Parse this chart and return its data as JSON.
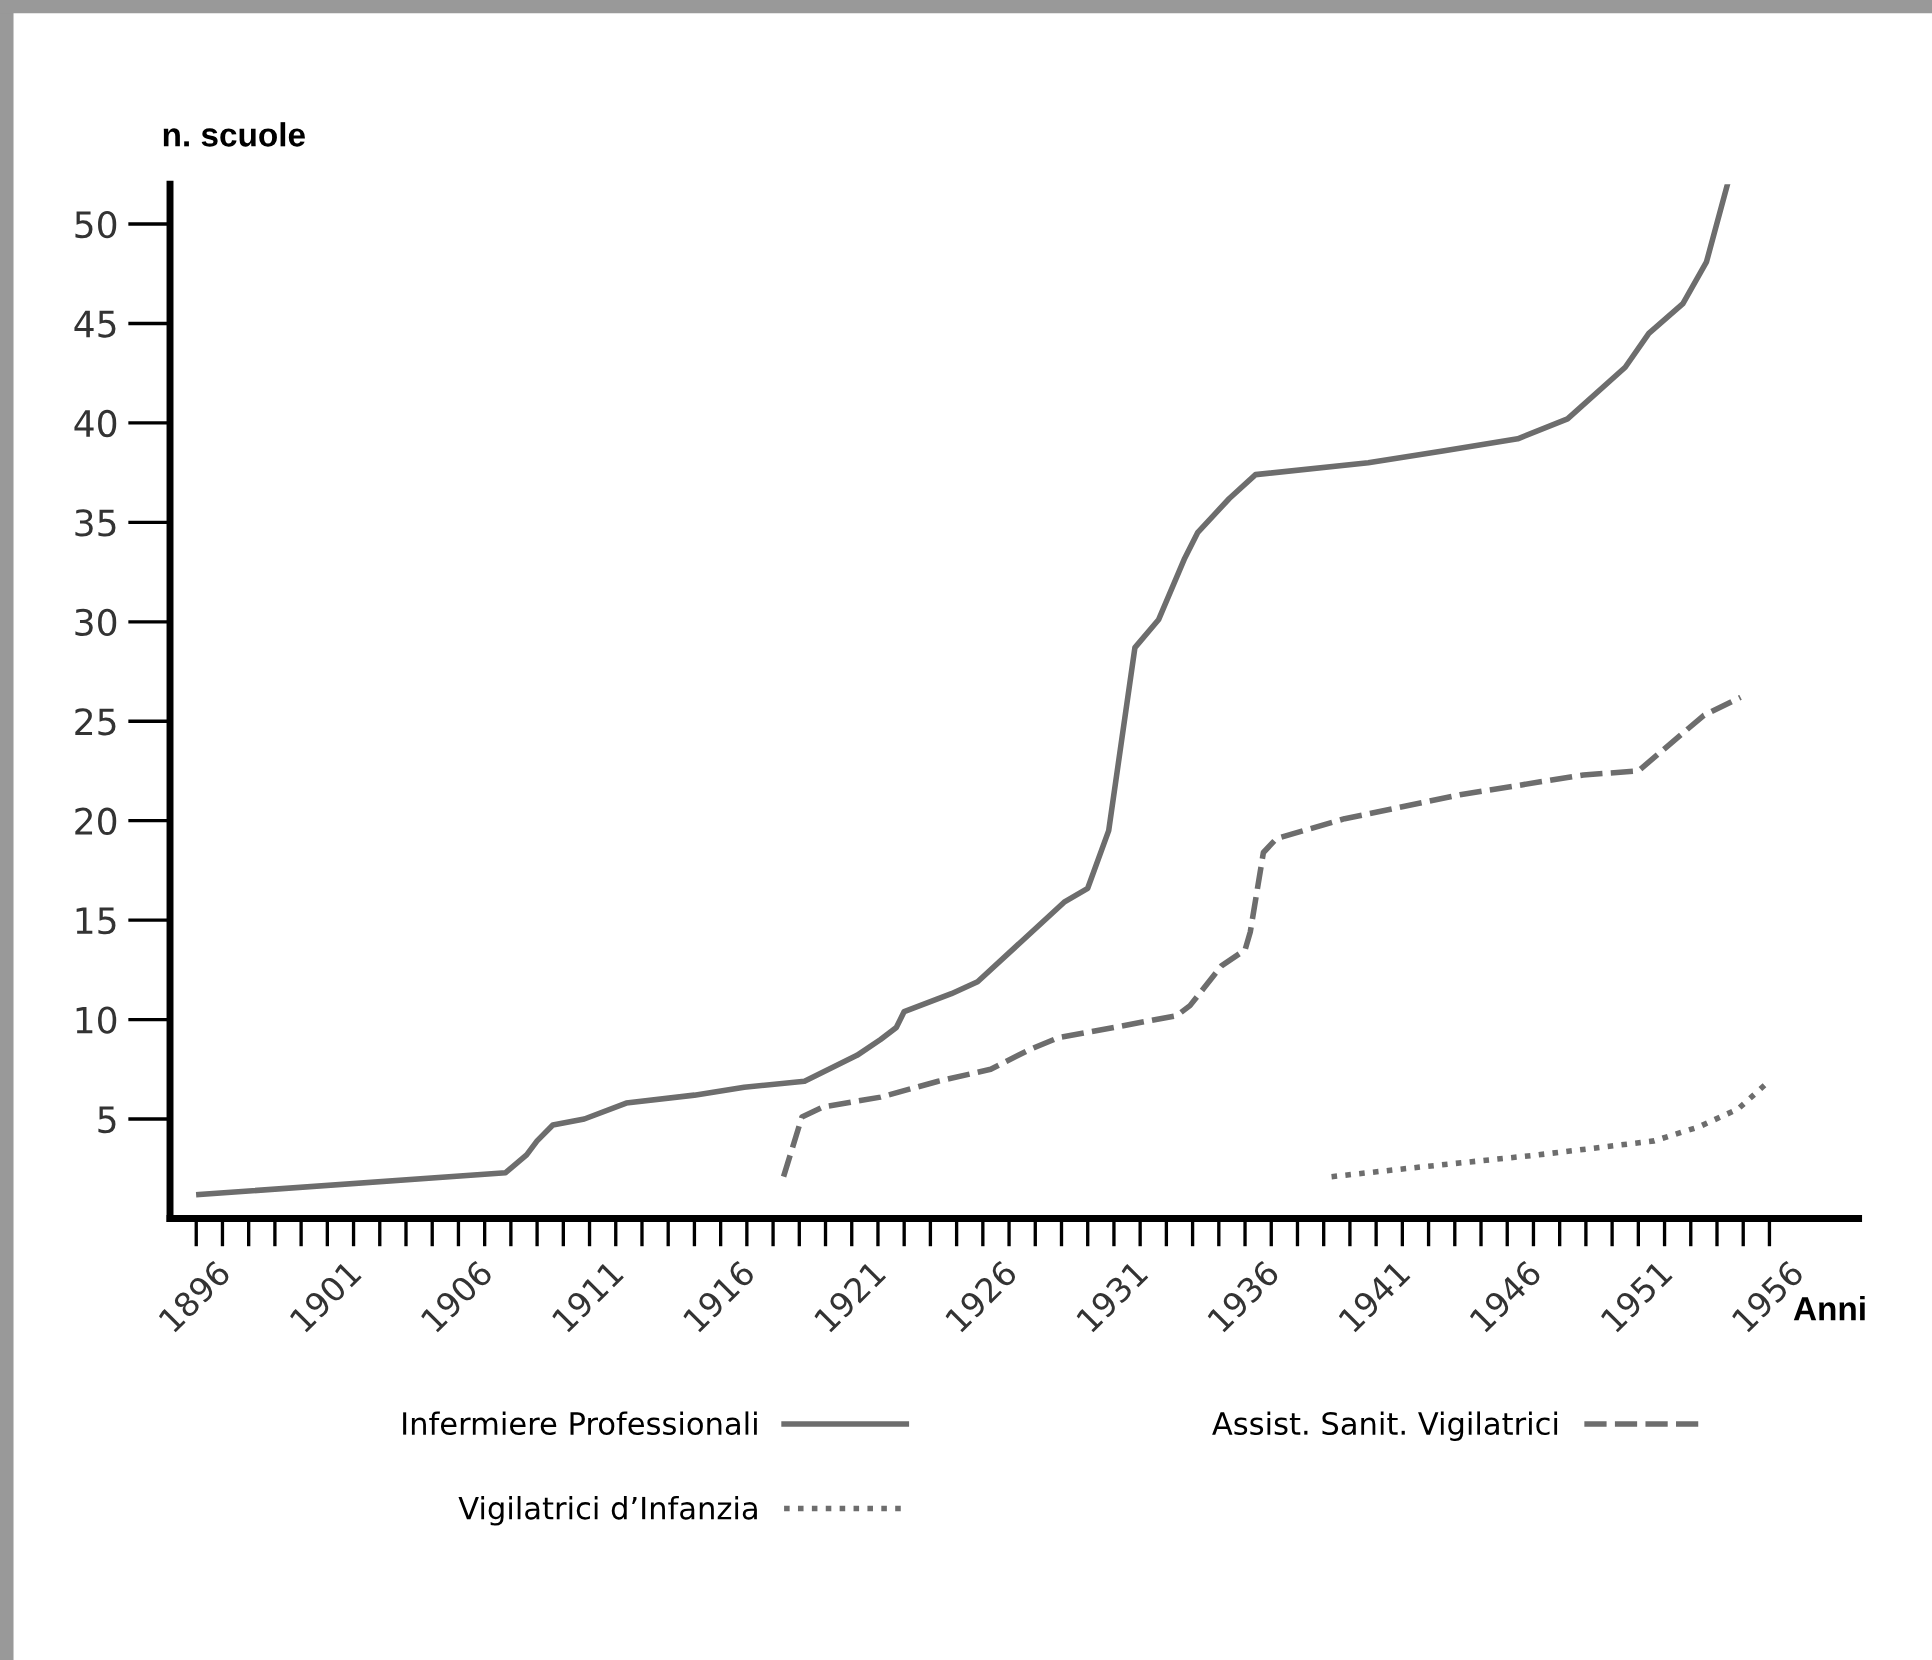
{
  "chart_data": {
    "type": "line",
    "xlabel": "Anni",
    "ylabel": "n. scuole",
    "xlim": [
      1895,
      1959.4
    ],
    "ylim": [
      0,
      52
    ],
    "yticks": [
      5,
      10,
      15,
      20,
      25,
      30,
      35,
      40,
      45,
      50
    ],
    "xticks": [
      1896,
      {
        "value": 1897,
        "label": null
      },
      {
        "value": 1898,
        "label": null
      },
      {
        "value": 1899,
        "label": null
      },
      {
        "value": 1900,
        "label": null
      },
      1901,
      {
        "value": 1902,
        "label": null
      },
      {
        "value": 1903,
        "label": null
      },
      {
        "value": 1904,
        "label": null
      },
      {
        "value": 1905,
        "label": null
      },
      1906,
      {
        "value": 1907,
        "label": null
      },
      {
        "value": 1908,
        "label": null
      },
      {
        "value": 1909,
        "label": null
      },
      {
        "value": 1910,
        "label": null
      },
      1911,
      {
        "value": 1912,
        "label": null
      },
      {
        "value": 1913,
        "label": null
      },
      {
        "value": 1914,
        "label": null
      },
      {
        "value": 1915,
        "label": null
      },
      1916,
      {
        "value": 1917,
        "label": null
      },
      {
        "value": 1918,
        "label": null
      },
      {
        "value": 1919,
        "label": null
      },
      {
        "value": 1920,
        "label": null
      },
      1921,
      {
        "value": 1922,
        "label": null
      },
      {
        "value": 1923,
        "label": null
      },
      {
        "value": 1924,
        "label": null
      },
      {
        "value": 1925,
        "label": null
      },
      1926,
      {
        "value": 1927,
        "label": null
      },
      {
        "value": 1928,
        "label": null
      },
      {
        "value": 1929,
        "label": null
      },
      {
        "value": 1930,
        "label": null
      },
      1931,
      {
        "value": 1932,
        "label": null
      },
      {
        "value": 1933,
        "label": null
      },
      {
        "value": 1934,
        "label": null
      },
      {
        "value": 1935,
        "label": null
      },
      1936,
      {
        "value": 1937,
        "label": null
      },
      {
        "value": 1938,
        "label": null
      },
      {
        "value": 1939,
        "label": null
      },
      {
        "value": 1940,
        "label": null
      },
      1941,
      {
        "value": 1942,
        "label": null
      },
      {
        "value": 1943,
        "label": null
      },
      {
        "value": 1944,
        "label": null
      },
      {
        "value": 1945,
        "label": null
      },
      1946,
      {
        "value": 1947,
        "label": null
      },
      {
        "value": 1948,
        "label": null
      },
      {
        "value": 1949,
        "label": null
      },
      {
        "value": 1950,
        "label": null
      },
      1951,
      {
        "value": 1952,
        "label": null
      },
      {
        "value": 1953,
        "label": null
      },
      {
        "value": 1954,
        "label": null
      },
      {
        "value": 1955,
        "label": null
      },
      1956
    ],
    "grid": false,
    "legend": "bottom",
    "marker": "none",
    "series": [
      {
        "name": "Infermiere Professionali",
        "color": "#6d6d6d",
        "line_style": "solid",
        "x": [
          1896.1,
          1907.8,
          1908.6,
          1909.0,
          1909.6,
          1910.8,
          1912.4,
          1915.0,
          1916.9,
          1919.2,
          1921.2,
          1922.1,
          1922.7,
          1923.0,
          1924.8,
          1925.8,
          1929.1,
          1930.0,
          1930.8,
          1931.8,
          1932.7,
          1933.7,
          1934.2,
          1935.4,
          1936.4,
          1940.7,
          1943.6,
          1946.4,
          1948.3,
          1950.5,
          1951.4,
          1952.7,
          1953.6,
          1954.4
        ],
        "values": [
          1.2,
          2.3,
          3.2,
          3.9,
          4.7,
          5.0,
          5.8,
          6.2,
          6.6,
          6.9,
          8.2,
          9.0,
          9.6,
          10.4,
          11.3,
          11.9,
          15.9,
          16.6,
          19.5,
          28.7,
          30.1,
          33.2,
          34.5,
          36.2,
          37.4,
          38.0,
          38.6,
          39.2,
          40.2,
          42.8,
          44.5,
          46.0,
          48.1,
          52.0
        ]
      },
      {
        "name": "Assist. Sanit. Vigilatrici",
        "color": "#6d6d6d",
        "line_style": "dashed",
        "x": [
          1918.4,
          1919.1,
          1919.9,
          1922.1,
          1924.3,
          1926.3,
          1927.8,
          1928.9,
          1931.0,
          1933.4,
          1933.9,
          1935.1,
          1936.0,
          1936.2,
          1936.7,
          1937.2,
          1939.8,
          1944.2,
          1948.9,
          1951.0,
          1953.5,
          1954.9
        ],
        "values": [
          2.1,
          5.1,
          5.6,
          6.1,
          6.9,
          7.5,
          8.5,
          9.1,
          9.6,
          10.2,
          10.7,
          12.7,
          13.5,
          14.4,
          18.4,
          19.1,
          20.1,
          21.3,
          22.3,
          22.5,
          25.3,
          26.2
        ]
      },
      {
        "name": "Vigilatrici d’Infanzia",
        "color": "#6d6d6d",
        "line_style": "dotted",
        "x": [
          1939.3,
          1942.8,
          1947.2,
          1951.6,
          1953.3,
          1954.8,
          1955.9
        ],
        "values": [
          2.1,
          2.6,
          3.2,
          3.9,
          4.6,
          5.5,
          6.8
        ]
      }
    ]
  }
}
